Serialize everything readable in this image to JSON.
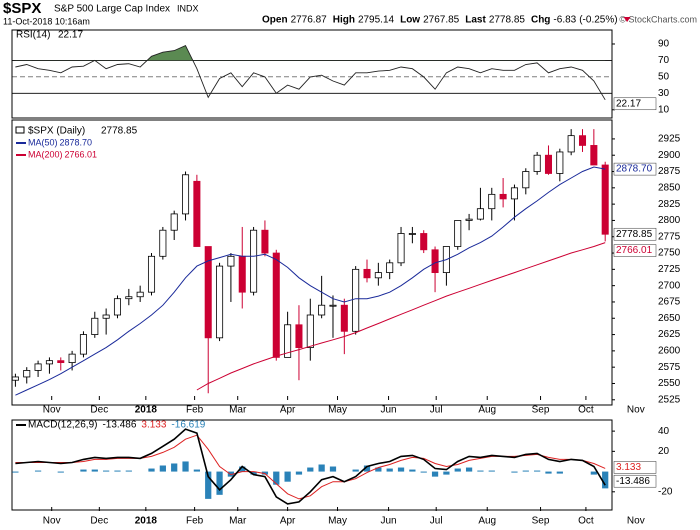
{
  "chart_data": {
    "type": "candlestick",
    "symbol": "$SPX",
    "name": "S&P 500 Large Cap Index",
    "exchange": "INDX",
    "timestamp": "11-Oct-2018 10:16am",
    "quote": {
      "open_label": "Open",
      "open": 2776.87,
      "high_label": "High",
      "high": 2795.14,
      "low_label": "Low",
      "low": 2767.85,
      "last_label": "Last",
      "last": 2778.85,
      "chg_label": "Chg",
      "chg": -6.83,
      "chg_pct": {
        "value": -0.25,
        "label": "(-0.25%)"
      }
    },
    "copyright": "© StockCharts.com",
    "xlim": [
      -0.3,
      52.6
    ],
    "xticks": [
      {
        "value": 3.2,
        "label": "Nov"
      },
      {
        "value": 7.4,
        "label": "Dec"
      },
      {
        "value": 11.5,
        "label": "2018"
      },
      {
        "value": 15.8,
        "label": "Feb"
      },
      {
        "value": 19.6,
        "label": "Mar"
      },
      {
        "value": 24,
        "label": "Apr"
      },
      {
        "value": 28.4,
        "label": "May"
      },
      {
        "value": 32.9,
        "label": "Jun"
      },
      {
        "value": 37.1,
        "label": "Jul"
      },
      {
        "value": 41.6,
        "label": "Aug"
      },
      {
        "value": 46.3,
        "label": "Sep"
      },
      {
        "value": 50.3,
        "label": "Oct"
      },
      {
        "value": 54.7,
        "label": "Nov"
      }
    ],
    "rsi": {
      "name": "RSI(14)",
      "last": 22.17,
      "color": "#222222",
      "fill": "#5b8a52",
      "ylim": [
        0,
        107
      ],
      "yticks": [
        90,
        70,
        50,
        30,
        10
      ],
      "values": [
        62,
        65,
        60,
        58,
        55,
        62,
        63,
        70,
        60,
        65,
        66,
        62,
        75,
        80,
        82,
        88,
        60,
        25,
        48,
        55,
        38,
        55,
        50,
        30,
        40,
        35,
        50,
        52,
        45,
        40,
        55,
        55,
        57,
        58,
        62,
        60,
        50,
        35,
        55,
        62,
        60,
        55,
        60,
        58,
        58,
        65,
        67,
        55,
        60,
        62,
        58,
        45,
        22.17
      ]
    },
    "price": {
      "name": "$SPX (Daily)",
      "last": 2778.85,
      "up_color": "#000000",
      "down_color": "#cc0033",
      "ylim": [
        2517,
        2954
      ],
      "yticks": [
        2525,
        2550,
        2575,
        2600,
        2625,
        2650,
        2675,
        2700,
        2725,
        2750,
        2775,
        2800,
        2825,
        2850,
        2875,
        2900,
        2925
      ],
      "ohlc": [
        [
          2555,
          2565,
          2545,
          2560
        ],
        [
          2560,
          2575,
          2550,
          2570
        ],
        [
          2570,
          2585,
          2560,
          2580
        ],
        [
          2580,
          2590,
          2565,
          2585
        ],
        [
          2585,
          2590,
          2570,
          2582
        ],
        [
          2582,
          2600,
          2570,
          2595
        ],
        [
          2595,
          2630,
          2590,
          2625
        ],
        [
          2625,
          2660,
          2620,
          2650
        ],
        [
          2650,
          2665,
          2625,
          2655
        ],
        [
          2655,
          2685,
          2650,
          2680
        ],
        [
          2680,
          2695,
          2670,
          2683
        ],
        [
          2683,
          2700,
          2675,
          2690
        ],
        [
          2690,
          2750,
          2685,
          2745
        ],
        [
          2745,
          2790,
          2740,
          2785
        ],
        [
          2785,
          2815,
          2770,
          2810
        ],
        [
          2810,
          2875,
          2800,
          2870
        ],
        [
          2860,
          2870,
          2760,
          2760
        ],
        [
          2760,
          2760,
          2535,
          2620
        ],
        [
          2620,
          2735,
          2615,
          2730
        ],
        [
          2730,
          2750,
          2675,
          2745
        ],
        [
          2745,
          2790,
          2665,
          2690
        ],
        [
          2690,
          2790,
          2685,
          2785
        ],
        [
          2785,
          2800,
          2745,
          2750
        ],
        [
          2750,
          2755,
          2585,
          2590
        ],
        [
          2590,
          2660,
          2590,
          2640
        ],
        [
          2640,
          2670,
          2555,
          2605
        ],
        [
          2605,
          2680,
          2585,
          2655
        ],
        [
          2655,
          2715,
          2650,
          2670
        ],
        [
          2670,
          2685,
          2620,
          2670
        ],
        [
          2670,
          2680,
          2595,
          2630
        ],
        [
          2630,
          2730,
          2625,
          2725
        ],
        [
          2725,
          2740,
          2705,
          2712
        ],
        [
          2712,
          2735,
          2700,
          2720
        ],
        [
          2720,
          2740,
          2710,
          2735
        ],
        [
          2735,
          2790,
          2730,
          2780
        ],
        [
          2780,
          2790,
          2765,
          2780
        ],
        [
          2780,
          2785,
          2750,
          2755
        ],
        [
          2755,
          2760,
          2690,
          2720
        ],
        [
          2720,
          2760,
          2700,
          2760
        ],
        [
          2760,
          2800,
          2755,
          2800
        ],
        [
          2800,
          2810,
          2785,
          2802
        ],
        [
          2802,
          2850,
          2800,
          2818
        ],
        [
          2818,
          2850,
          2800,
          2840
        ],
        [
          2840,
          2865,
          2820,
          2833
        ],
        [
          2833,
          2855,
          2800,
          2850
        ],
        [
          2850,
          2880,
          2840,
          2875
        ],
        [
          2875,
          2905,
          2870,
          2900
        ],
        [
          2900,
          2915,
          2870,
          2872
        ],
        [
          2872,
          2910,
          2860,
          2905
        ],
        [
          2905,
          2940,
          2900,
          2930
        ],
        [
          2930,
          2940,
          2905,
          2915
        ],
        [
          2915,
          2940,
          2888,
          2885
        ],
        [
          2885,
          2890,
          2767.85,
          2778.85
        ]
      ],
      "ma": [
        {
          "name": "MA(50)",
          "last": {
            "value": 2878.7,
            "label": "2878.70"
          },
          "color": "#1a2a9a",
          "values": [
            2532,
            2540,
            2548,
            2556,
            2565,
            2575,
            2585,
            2595,
            2605,
            2617,
            2630,
            2642,
            2655,
            2670,
            2690,
            2712,
            2730,
            2738,
            2743,
            2748,
            2745,
            2745,
            2748,
            2740,
            2728,
            2712,
            2700,
            2690,
            2680,
            2675,
            2680,
            2680,
            2684,
            2690,
            2700,
            2712,
            2725,
            2735,
            2740,
            2748,
            2758,
            2766,
            2776,
            2790,
            2805,
            2818,
            2830,
            2843,
            2855,
            2865,
            2875,
            2882,
            2878.7
          ]
        },
        {
          "name": "MA(200)",
          "last": 2766.01,
          "color": "#cc0033",
          "values": [
            null,
            null,
            null,
            null,
            null,
            null,
            null,
            null,
            null,
            null,
            null,
            null,
            null,
            null,
            null,
            null,
            2540,
            2550,
            2558,
            2566,
            2573,
            2580,
            2586,
            2592,
            2597,
            2602,
            2607,
            2612,
            2617,
            2622,
            2628,
            2635,
            2642,
            2649,
            2656,
            2663,
            2670,
            2677,
            2684,
            2690,
            2696,
            2702,
            2708,
            2714,
            2720,
            2726,
            2732,
            2738,
            2744,
            2750,
            2755,
            2760,
            2766.01
          ]
        }
      ]
    },
    "macd": {
      "name": "MACD(12,26,9)",
      "ylim": [
        -38,
        51
      ],
      "yticks": [
        40,
        20,
        -20
      ],
      "macd": {
        "color": "#000000",
        "values": [
          8,
          9,
          10,
          9,
          8,
          9,
          12,
          14,
          13,
          14,
          14,
          13,
          18,
          25,
          32,
          42,
          38,
          -5,
          -18,
          -8,
          5,
          -3,
          -5,
          -25,
          -32,
          -30,
          -20,
          -8,
          -5,
          -10,
          -5,
          5,
          8,
          10,
          15,
          16,
          12,
          3,
          2,
          10,
          15,
          14,
          16,
          15,
          14,
          17,
          18,
          12,
          10,
          12,
          11,
          5,
          -13.486
        ]
      },
      "signal": {
        "color": "#dd2222",
        "values": [
          9,
          9,
          9,
          9,
          9,
          9,
          10,
          12,
          12,
          13,
          13,
          13,
          15,
          19,
          24,
          32,
          36,
          22,
          5,
          -3,
          0,
          0,
          -2,
          -12,
          -22,
          -27,
          -24,
          -15,
          -10,
          -10,
          -7,
          -1,
          4,
          7,
          11,
          14,
          13,
          8,
          5,
          7,
          11,
          13,
          15,
          15,
          15,
          16,
          17,
          14,
          12,
          12,
          11,
          8,
          3.133
        ]
      },
      "histogram": {
        "color": "#2a82b8",
        "values": [
          -1,
          0,
          1,
          0,
          -1,
          0,
          2,
          2,
          1,
          1,
          1,
          0,
          3,
          6,
          8,
          10,
          2,
          -27,
          -23,
          -5,
          5,
          -3,
          -3,
          -13,
          -10,
          -3,
          4,
          7,
          5,
          0,
          2,
          6,
          4,
          3,
          4,
          2,
          -1,
          -5,
          -3,
          3,
          4,
          1,
          1,
          0,
          -1,
          1,
          1,
          -2,
          -2,
          0,
          0,
          -3,
          -16.619
        ]
      }
    }
  }
}
